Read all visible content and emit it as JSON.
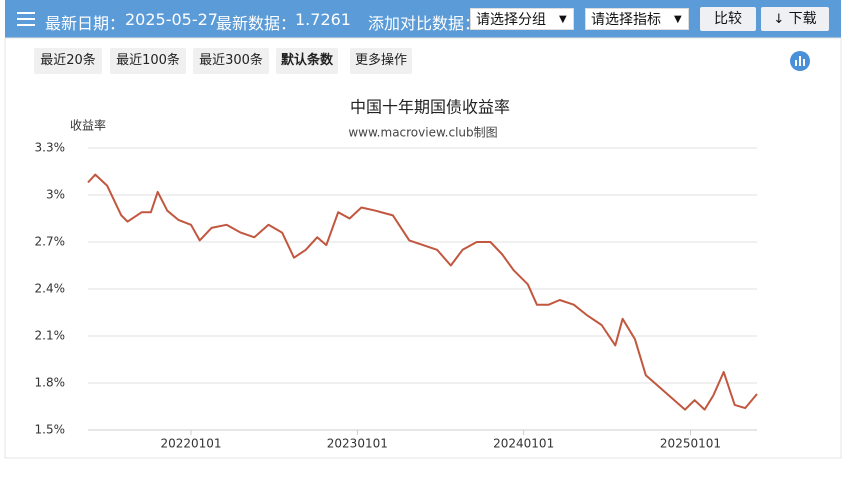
{
  "header": {
    "date_label": "最新日期：",
    "date": "2025-05-27",
    "latest_label": "最新数据：",
    "latest": "1.7261",
    "compare_label": "添加对比数据：",
    "select_group": "请选择分组",
    "select_indicator": "请选择指标",
    "compare_button": "比较",
    "download_button": "下载"
  },
  "toolbar": {
    "buttons": [
      "最近20条",
      "最近100条",
      "最近300条",
      "默认条数",
      "更多操作"
    ]
  },
  "chart_data": {
    "type": "line",
    "title": "中国十年期国债收益率",
    "subtitle": "www.macroview.club制图",
    "y_label": "收益率",
    "color": "#c2573f",
    "grid": true,
    "x": [
      "2021-05-20",
      "2021-06-05",
      "2021-07-01",
      "2021-08-01",
      "2021-08-15",
      "2021-09-15",
      "2021-10-05",
      "2021-10-20",
      "2021-11-10",
      "2021-12-05",
      "2022-01-01",
      "2022-01-20",
      "2022-02-15",
      "2022-03-20",
      "2022-04-20",
      "2022-05-20",
      "2022-06-20",
      "2022-07-20",
      "2022-08-15",
      "2022-09-10",
      "2022-10-05",
      "2022-10-25",
      "2022-11-20",
      "2022-12-15",
      "2023-01-10",
      "2023-02-10",
      "2023-03-20",
      "2023-04-25",
      "2023-05-25",
      "2023-06-25",
      "2023-07-25",
      "2023-08-20",
      "2023-09-20",
      "2023-10-20",
      "2023-11-15",
      "2023-12-10",
      "2024-01-10",
      "2024-01-30",
      "2024-02-25",
      "2024-03-20",
      "2024-04-20",
      "2024-05-20",
      "2024-06-20",
      "2024-07-20",
      "2024-08-05",
      "2024-09-01",
      "2024-09-25",
      "2024-12-20",
      "2025-01-10",
      "2025-02-01",
      "2025-02-20",
      "2025-03-15",
      "2025-04-08",
      "2025-05-01",
      "2025-05-27"
    ],
    "values": [
      3.08,
      3.13,
      3.06,
      2.87,
      2.83,
      2.89,
      2.89,
      3.02,
      2.9,
      2.84,
      2.81,
      2.71,
      2.79,
      2.81,
      2.76,
      2.73,
      2.81,
      2.76,
      2.6,
      2.65,
      2.73,
      2.68,
      2.89,
      2.85,
      2.92,
      2.9,
      2.87,
      2.71,
      2.68,
      2.65,
      2.55,
      2.65,
      2.7,
      2.7,
      2.62,
      2.52,
      2.43,
      2.3,
      2.3,
      2.33,
      2.3,
      2.23,
      2.17,
      2.04,
      2.21,
      2.08,
      1.85,
      1.63,
      1.69,
      1.63,
      1.72,
      1.87,
      1.66,
      1.64,
      1.73
    ],
    "xlim": [
      "2021-05-20",
      "2025-05-27"
    ],
    "xticks": [
      {
        "value": "2022-01-01",
        "label": "20220101"
      },
      {
        "value": "2023-01-01",
        "label": "20230101"
      },
      {
        "value": "2024-01-01",
        "label": "20240101"
      },
      {
        "value": "2025-01-01",
        "label": "20250101"
      }
    ],
    "ylim": [
      1.5,
      3.3
    ],
    "yticks": [
      {
        "value": 1.5,
        "label": "1.5%"
      },
      {
        "value": 1.8,
        "label": "1.8%"
      },
      {
        "value": 2.1,
        "label": "2.1%"
      },
      {
        "value": 2.4,
        "label": "2.4%"
      },
      {
        "value": 2.7,
        "label": "2.7%"
      },
      {
        "value": 3,
        "label": "3%"
      },
      {
        "value": 3.3,
        "label": "3.3%"
      }
    ]
  }
}
